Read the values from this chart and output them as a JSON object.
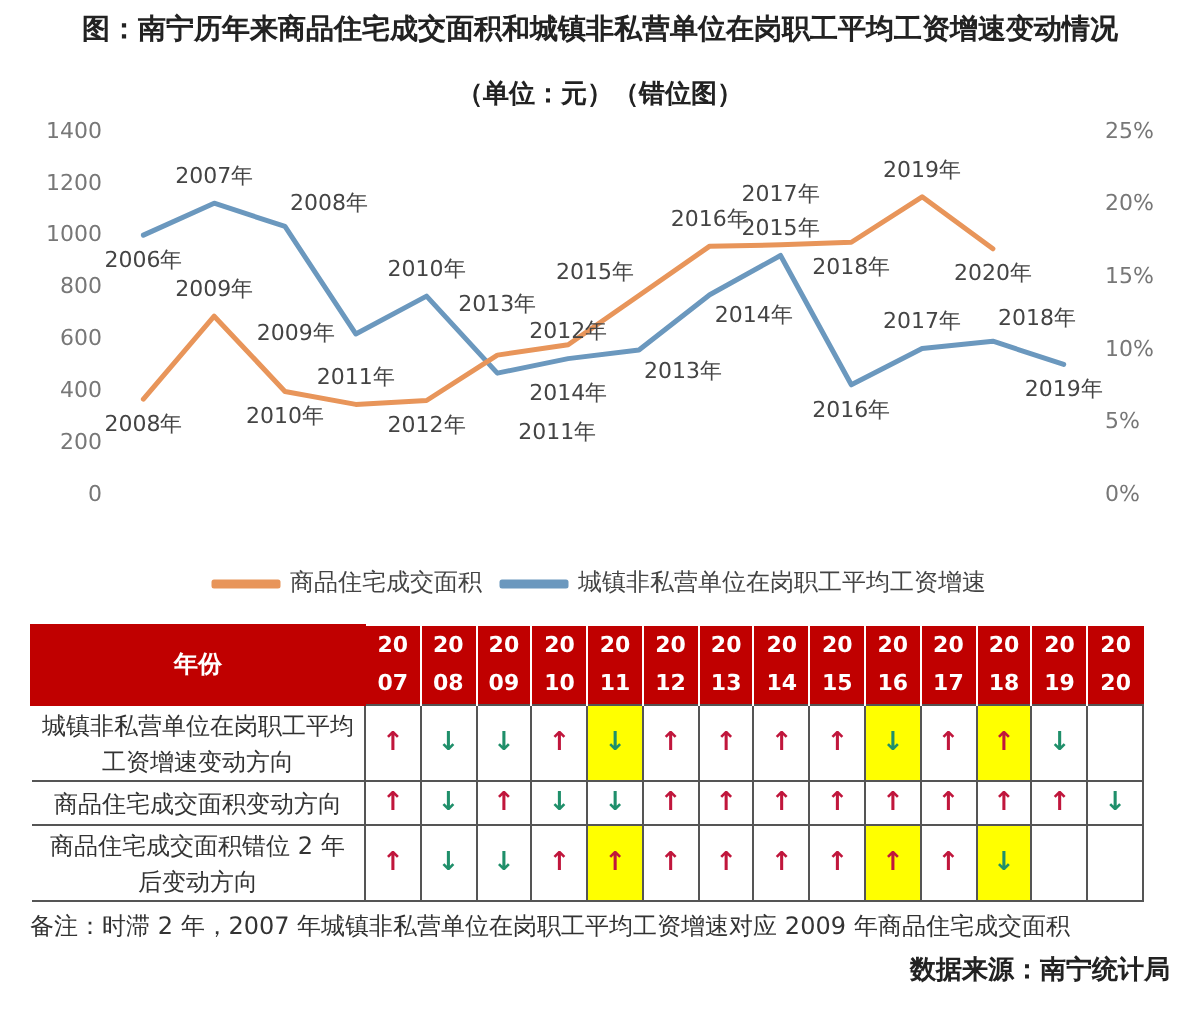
{
  "chart_data": [
    {
      "type": "line",
      "title": "图：南宁历年来商品住宅成交面积和城镇非私营单位在岗职工平均工资增速变动情况",
      "subtitle": "（单位：元）（错位图）",
      "categories": [
        null,
        null,
        null,
        null,
        null,
        null,
        null,
        null,
        null,
        null,
        null,
        null,
        null,
        null
      ],
      "series": [
        {
          "name": "商品住宅成交面积",
          "color": "#e8955a",
          "values": [
            370,
            690,
            400,
            350,
            365,
            540,
            580,
            770,
            960,
            965,
            975,
            1150,
            950,
            null
          ]
        },
        {
          "name": "城镇非私营单位在岗职工平均工资增速",
          "color": "#6b98be",
          "axis": "y2",
          "values": [
            17.9,
            20.1,
            18.5,
            11.1,
            13.7,
            8.4,
            9.4,
            10.0,
            13.8,
            16.5,
            7.6,
            10.1,
            10.6,
            9.0
          ]
        }
      ],
      "annotations": [
        "2008年",
        "2009年",
        "2010年",
        "2011年",
        "2012年",
        "2013年",
        "2014年",
        "2015年",
        "2016年",
        "2017年",
        "2018年",
        "2019年",
        "2020年",
        "2006年",
        "2007年",
        "2008年",
        "2009年",
        "2010年",
        "2011年",
        "2012年",
        "2013年",
        "2014年",
        "2015年",
        "2016年",
        "2017年",
        "2018年",
        "2019年"
      ],
      "ylim": [
        0,
        1400
      ],
      "yticks": [
        0,
        200,
        400,
        600,
        800,
        1000,
        1200,
        1400
      ],
      "y2lim": [
        0,
        25
      ],
      "y2ticks": [
        {
          "value": 0,
          "label": "0%"
        },
        {
          "value": 5,
          "label": "5%"
        },
        {
          "value": 10,
          "label": "10%"
        },
        {
          "value": 15,
          "label": "15%"
        },
        {
          "value": 20,
          "label": "20%"
        },
        {
          "value": 25,
          "label": "25%"
        }
      ],
      "grid": false,
      "legend": "bottom",
      "marker": "none",
      "line_style": "solid"
    },
    {
      "type": "heatmap",
      "xlabel": "年份",
      "categories": [
        "2007",
        "2008",
        "2009",
        "2010",
        "2011",
        "2012",
        "2013",
        "2014",
        "2015",
        "2016",
        "2017",
        "2018",
        "2019",
        "2020"
      ],
      "y_categories": [
        "城镇非私营单位在岗职工平均工资增速变动方向",
        "商品住宅成交面积变动方向",
        "商品住宅成交面积错位 2 年后变动方向"
      ],
      "cells": [
        [
          null,
          null,
          null,
          null,
          null,
          null,
          null,
          null,
          null,
          null,
          null,
          null,
          null,
          null
        ],
        [
          null,
          null,
          null,
          null,
          null,
          null,
          null,
          null,
          null,
          null,
          null,
          null,
          null,
          null
        ],
        [
          null,
          null,
          null,
          null,
          null,
          null,
          null,
          null,
          null,
          null,
          null,
          null,
          null,
          null
        ]
      ],
      "cell_labels": [
        [
          "↑",
          "↓",
          "↓",
          "↑",
          "↓",
          "↑",
          "↑",
          "↑",
          "↑",
          "↓",
          "↑",
          "↑",
          "↓",
          null
        ],
        [
          "↑",
          "↓",
          "↑",
          "↓",
          "↓",
          "↑",
          "↑",
          "↑",
          "↑",
          "↑",
          "↑",
          "↑",
          "↑",
          "↓"
        ],
        [
          "↑",
          "↓",
          "↓",
          "↑",
          "↑",
          "↑",
          "↑",
          "↑",
          "↑",
          "↑",
          "↑",
          "↓",
          null,
          null
        ]
      ],
      "annotations": [
        "备注：时滞 2 年，2007 年城镇非私营单位在岗职工平均工资增速对应 2009 年商品住宅成交面积",
        "数据来源：南宁统计局"
      ]
    }
  ]
}
